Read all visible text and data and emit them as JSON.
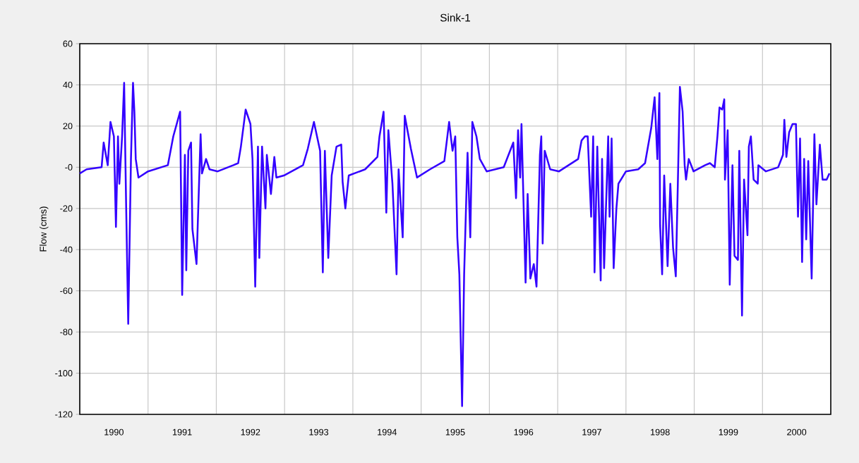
{
  "chart_data": {
    "type": "line",
    "title": "Sink-1",
    "ylabel": "Flow (cms)",
    "color": "#3300ff",
    "x": [
      1990.0,
      1990.1,
      1990.32,
      1990.35,
      1990.41,
      1990.45,
      1990.5,
      1990.53,
      1990.56,
      1990.58,
      1990.62,
      1990.65,
      1990.68,
      1990.71,
      1990.75,
      1990.78,
      1990.8,
      1990.82,
      1990.86,
      1991.0,
      1991.29,
      1991.37,
      1991.47,
      1991.5,
      1991.54,
      1991.56,
      1991.59,
      1991.63,
      1991.65,
      1991.71,
      1991.77,
      1991.79,
      1991.85,
      1991.9,
      1992.02,
      1992.25,
      1992.32,
      1992.36,
      1992.43,
      1992.5,
      1992.53,
      1992.57,
      1992.61,
      1992.63,
      1992.67,
      1992.72,
      1992.74,
      1992.8,
      1992.85,
      1992.88,
      1992.99,
      1993.27,
      1993.34,
      1993.43,
      1993.52,
      1993.56,
      1993.59,
      1993.64,
      1993.69,
      1993.76,
      1993.83,
      1993.85,
      1993.89,
      1993.94,
      1994.18,
      1994.36,
      1994.39,
      1994.45,
      1994.49,
      1994.52,
      1994.58,
      1994.64,
      1994.67,
      1994.73,
      1994.76,
      1994.85,
      1994.94,
      1995.13,
      1995.34,
      1995.41,
      1995.46,
      1995.5,
      1995.53,
      1995.56,
      1995.6,
      1995.63,
      1995.68,
      1995.72,
      1995.75,
      1995.81,
      1995.86,
      1995.96,
      1996.21,
      1996.35,
      1996.39,
      1996.42,
      1996.45,
      1996.47,
      1996.53,
      1996.56,
      1996.6,
      1996.65,
      1996.69,
      1996.74,
      1996.76,
      1996.78,
      1996.81,
      1996.89,
      1997.02,
      1997.3,
      1997.35,
      1997.4,
      1997.44,
      1997.49,
      1997.52,
      1997.54,
      1997.58,
      1997.63,
      1997.65,
      1997.68,
      1997.74,
      1997.76,
      1997.79,
      1997.82,
      1997.86,
      1997.89,
      1998.0,
      1998.18,
      1998.28,
      1998.37,
      1998.42,
      1998.46,
      1998.49,
      1998.5,
      1998.53,
      1998.56,
      1998.61,
      1998.65,
      1998.69,
      1998.73,
      1998.76,
      1998.79,
      1998.83,
      1998.86,
      1998.88,
      1998.92,
      1998.99,
      1999.16,
      1999.23,
      1999.3,
      1999.34,
      1999.37,
      1999.41,
      1999.44,
      1999.45,
      1999.49,
      1999.52,
      1999.56,
      1999.59,
      1999.64,
      1999.66,
      1999.7,
      1999.73,
      1999.78,
      1999.8,
      1999.83,
      1999.87,
      1999.93,
      1999.94,
      2000.05,
      2000.23,
      2000.3,
      2000.32,
      2000.35,
      2000.39,
      2000.44,
      2000.49,
      2000.52,
      2000.55,
      2000.58,
      2000.61,
      2000.64,
      2000.67,
      2000.72,
      2000.76,
      2000.79,
      2000.84,
      2000.88,
      2000.94,
      2000.98
    ],
    "values": [
      -3,
      -1,
      0,
      12,
      1,
      22,
      15,
      -29,
      15,
      -8,
      15,
      41,
      -20,
      -76,
      4,
      41,
      27,
      4,
      -5,
      -2,
      1,
      15,
      27,
      -62,
      6,
      -50,
      8,
      12,
      -30,
      -47,
      16,
      -3,
      4,
      -1,
      -2,
      1,
      2,
      10,
      28,
      21,
      4,
      -58,
      10,
      -44,
      10,
      -20,
      6,
      -13,
      5,
      -5,
      -4,
      1,
      9,
      22,
      8,
      -51,
      8,
      -44,
      -4,
      10,
      11,
      -7,
      -20,
      -4,
      -1,
      5,
      15,
      27,
      -22,
      18,
      -8,
      -52,
      -1,
      -34,
      25,
      9,
      -5,
      -1,
      3,
      22,
      8,
      15,
      -34,
      -52,
      -116,
      -52,
      7,
      -34,
      22,
      15,
      4,
      -2,
      0,
      12,
      -15,
      18,
      -5,
      21,
      -56,
      -13,
      -54,
      -47,
      -58,
      6,
      15,
      -37,
      8,
      -1,
      -2,
      4,
      13,
      15,
      15,
      -24,
      15,
      -51,
      10,
      -55,
      4,
      -49,
      15,
      -24,
      14,
      -49,
      -20,
      -8,
      -2,
      -1,
      2,
      19,
      34,
      4,
      36,
      -28,
      -52,
      -4,
      -48,
      -8,
      -39,
      -53,
      -8,
      39,
      27,
      1,
      -6,
      4,
      -2,
      1,
      2,
      0,
      15,
      29,
      28,
      33,
      -6,
      18,
      -57,
      1,
      -43,
      -45,
      8,
      -72,
      -6,
      -33,
      10,
      15,
      -6,
      -8,
      1,
      -2,
      0,
      6,
      23,
      5,
      17,
      21,
      21,
      -24,
      14,
      -46,
      4,
      -35,
      3,
      -54,
      16,
      -18,
      11,
      -6,
      -6,
      -3
    ],
    "xlim": [
      1990,
      2001
    ],
    "xticks": [
      {
        "value": 1990,
        "label": null
      },
      {
        "value": 1991,
        "label": null
      },
      {
        "value": 1992,
        "label": null
      },
      {
        "value": 1993,
        "label": null
      },
      {
        "value": 1994,
        "label": null
      },
      {
        "value": 1995,
        "label": null
      },
      {
        "value": 1996,
        "label": null
      },
      {
        "value": 1997,
        "label": null
      },
      {
        "value": 1998,
        "label": null
      },
      {
        "value": 1999,
        "label": null
      },
      {
        "value": 2000,
        "label": null
      },
      {
        "value": 1990.5,
        "label": "1990"
      },
      {
        "value": 1991.5,
        "label": "1991"
      },
      {
        "value": 1992.5,
        "label": "1992"
      },
      {
        "value": 1993.5,
        "label": "1993"
      },
      {
        "value": 1994.5,
        "label": "1994"
      },
      {
        "value": 1995.5,
        "label": "1995"
      },
      {
        "value": 1996.5,
        "label": "1996"
      },
      {
        "value": 1997.5,
        "label": "1997"
      },
      {
        "value": 1998.5,
        "label": "1998"
      },
      {
        "value": 1999.5,
        "label": "1999"
      },
      {
        "value": 2000.5,
        "label": "2000"
      }
    ],
    "ylim": [
      -120,
      60
    ],
    "yticks": [
      60,
      40,
      20,
      {
        "value": 0,
        "label": "-0"
      },
      -20,
      -40,
      -60,
      -80,
      -100,
      -120
    ],
    "grid": true
  }
}
